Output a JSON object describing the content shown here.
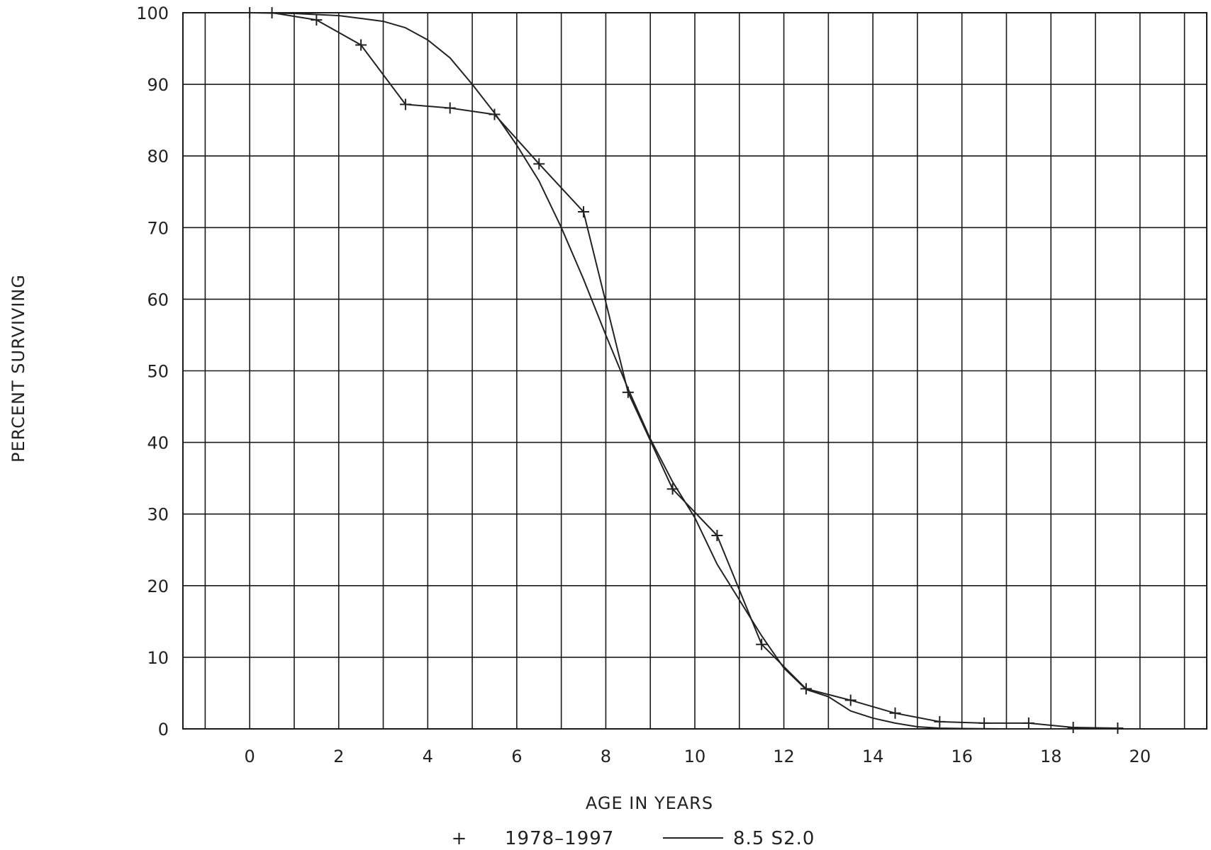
{
  "chart_data": {
    "type": "line",
    "title": "",
    "xlabel": "AGE IN YEARS",
    "ylabel": "PERCENT SURVIVING",
    "xlim": [
      -1.5,
      21.5
    ],
    "ylim": [
      0,
      100
    ],
    "x_ticks": [
      "0",
      "2",
      "4",
      "6",
      "8",
      "10",
      "12",
      "14",
      "16",
      "18",
      "20"
    ],
    "y_ticks": [
      "0",
      "10",
      "20",
      "30",
      "40",
      "50",
      "60",
      "70",
      "80",
      "90",
      "100"
    ],
    "grid": true,
    "legend_position": "bottom-center",
    "series": [
      {
        "name": "1978–1997",
        "marker_symbol": "+",
        "style": "line-with-plus-markers",
        "x": [
          0,
          0.5,
          1.5,
          2.5,
          3.5,
          4.5,
          5.5,
          6.5,
          7.5,
          8.5,
          9.5,
          10.5,
          11.5,
          12.5,
          13.5,
          14.5,
          15.5,
          16.5,
          17.5,
          18.5,
          19.5
        ],
        "y": [
          100,
          100,
          99,
          95.5,
          87.2,
          86.7,
          85.8,
          78.9,
          72.2,
          47,
          33.5,
          27,
          11.8,
          5.6,
          4,
          2.2,
          1,
          0.8,
          0.8,
          0.2,
          0.1
        ]
      },
      {
        "name": "8.5 S2.0",
        "style": "smooth-line",
        "x": [
          0,
          1,
          2,
          3,
          3.5,
          4,
          4.5,
          5,
          5.5,
          6,
          6.5,
          7,
          7.5,
          8,
          8.5,
          9,
          9.5,
          10,
          10.5,
          11,
          11.5,
          12,
          12.5,
          13,
          13.5,
          14,
          14.5,
          15,
          15.5,
          16,
          17,
          18,
          19,
          20
        ],
        "y": [
          100,
          99.9,
          99.6,
          98.8,
          97.9,
          96.2,
          93.7,
          90,
          86,
          81.5,
          76.5,
          70,
          62.8,
          55,
          47.5,
          40.5,
          34.5,
          29.5,
          23,
          18,
          13,
          8.5,
          5.5,
          4.5,
          2.5,
          1.5,
          0.8,
          0.3,
          0.1,
          0.05,
          0,
          0,
          0,
          0
        ]
      }
    ]
  },
  "colors": {
    "ink": "#222222",
    "grid": "#1a1a1a",
    "background": "#ffffff"
  }
}
